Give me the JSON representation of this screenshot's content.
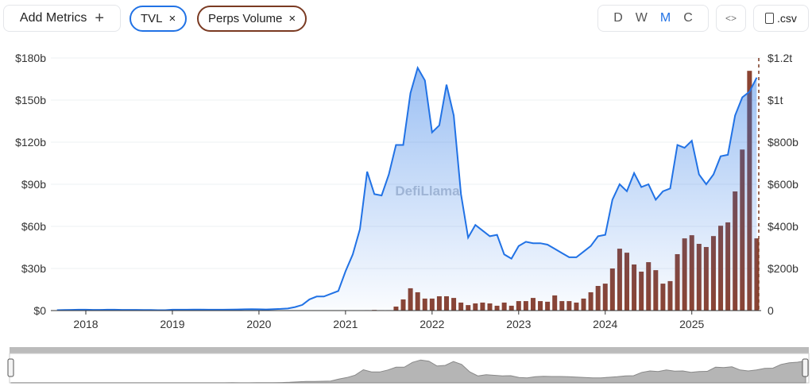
{
  "toolbar": {
    "add_metrics": "Add Metrics",
    "plus_icon": "+",
    "metrics": [
      {
        "label": "TVL",
        "color": "#2172e5"
      },
      {
        "label": "Perps Volume",
        "color": "#7a3a22"
      }
    ],
    "close_glyph": "×",
    "granularity": [
      "D",
      "W",
      "M",
      "C"
    ],
    "granularity_selected": "M",
    "embed_glyph": "<>",
    "csv_label": ".csv"
  },
  "watermark": "DefiLlama",
  "chart_data": {
    "type": "line+bar",
    "title": "",
    "xticks": [
      "2018",
      "2019",
      "2020",
      "2021",
      "2022",
      "2023",
      "2024",
      "2025"
    ],
    "yticks_left": [
      "$0",
      "$30b",
      "$60b",
      "$90b",
      "$120b",
      "$150b",
      "$180b"
    ],
    "yticks_right": [
      "0",
      "$200b",
      "$400b",
      "$600b",
      "$800b",
      "$1t",
      "$1.2t"
    ],
    "ylim_left": [
      0,
      180
    ],
    "ylim_right": [
      0,
      1200
    ],
    "unit": "billions USD",
    "grid": true,
    "series": [
      {
        "name": "TVL",
        "type": "area-line",
        "axis": "left",
        "color": "#2172e5",
        "months": [
          "2017-09",
          "2017-10",
          "2017-11",
          "2017-12",
          "2018-01",
          "2018-02",
          "2018-03",
          "2018-04",
          "2018-05",
          "2018-06",
          "2018-07",
          "2018-08",
          "2018-09",
          "2018-10",
          "2018-11",
          "2018-12",
          "2019-01",
          "2019-02",
          "2019-03",
          "2019-04",
          "2019-05",
          "2019-06",
          "2019-07",
          "2019-08",
          "2019-09",
          "2019-10",
          "2019-11",
          "2019-12",
          "2020-01",
          "2020-02",
          "2020-03",
          "2020-04",
          "2020-05",
          "2020-06",
          "2020-07",
          "2020-08",
          "2020-09",
          "2020-10",
          "2020-11",
          "2020-12",
          "2021-01",
          "2021-02",
          "2021-03",
          "2021-04",
          "2021-05",
          "2021-06",
          "2021-07",
          "2021-08",
          "2021-09",
          "2021-10",
          "2021-11",
          "2021-12",
          "2022-01",
          "2022-02",
          "2022-03",
          "2022-04",
          "2022-05",
          "2022-06",
          "2022-07",
          "2022-08",
          "2022-09",
          "2022-10",
          "2022-11",
          "2022-12",
          "2023-01",
          "2023-02",
          "2023-03",
          "2023-04",
          "2023-05",
          "2023-06",
          "2023-07",
          "2023-08",
          "2023-09",
          "2023-10",
          "2023-11",
          "2023-12",
          "2024-01",
          "2024-02",
          "2024-03",
          "2024-04",
          "2024-05",
          "2024-06",
          "2024-07",
          "2024-08",
          "2024-09",
          "2024-10",
          "2024-11",
          "2024-12",
          "2025-01",
          "2025-02",
          "2025-03",
          "2025-04",
          "2025-05",
          "2025-06",
          "2025-07",
          "2025-08",
          "2025-09",
          "2025-10"
        ],
        "values": [
          0.3,
          0.4,
          0.5,
          0.6,
          0.6,
          0.5,
          0.5,
          0.6,
          0.6,
          0.5,
          0.5,
          0.5,
          0.4,
          0.4,
          0.3,
          0.3,
          0.6,
          0.6,
          0.6,
          0.7,
          0.7,
          0.6,
          0.6,
          0.6,
          0.7,
          0.8,
          0.9,
          1.0,
          0.9,
          0.8,
          1.0,
          1.2,
          1.5,
          2.5,
          4,
          8,
          10,
          10,
          12,
          14,
          28,
          40,
          58,
          99,
          83,
          82,
          97,
          118,
          118,
          155,
          173,
          164,
          127,
          132,
          161,
          139,
          83,
          52,
          61,
          57,
          53,
          54,
          40,
          37,
          46,
          49,
          48,
          48,
          47,
          44,
          41,
          38,
          38,
          42,
          46,
          53,
          54,
          79,
          90,
          85,
          98,
          88,
          90,
          79,
          85,
          87,
          118,
          116,
          121,
          97,
          90,
          97,
          110,
          111,
          139,
          152,
          156,
          166
        ]
      },
      {
        "name": "Perps Volume",
        "type": "bar",
        "axis": "right",
        "color": "#8b4331",
        "months": [
          "2021-04",
          "2021-05",
          "2021-06",
          "2021-07",
          "2021-08",
          "2021-09",
          "2021-10",
          "2021-11",
          "2021-12",
          "2022-01",
          "2022-02",
          "2022-03",
          "2022-04",
          "2022-05",
          "2022-06",
          "2022-07",
          "2022-08",
          "2022-09",
          "2022-10",
          "2022-11",
          "2022-12",
          "2023-01",
          "2023-02",
          "2023-03",
          "2023-04",
          "2023-05",
          "2023-06",
          "2023-07",
          "2023-08",
          "2023-09",
          "2023-10",
          "2023-11",
          "2023-12",
          "2024-01",
          "2024-02",
          "2024-03",
          "2024-04",
          "2024-05",
          "2024-06",
          "2024-07",
          "2024-08",
          "2024-09",
          "2024-10",
          "2024-11",
          "2024-12",
          "2025-01",
          "2025-02",
          "2025-03",
          "2025-04",
          "2025-05",
          "2025-06",
          "2025-07",
          "2025-08",
          "2025-09",
          "2025-10"
        ],
        "values": [
          2,
          3,
          2,
          2,
          19,
          53,
          106,
          87,
          57,
          57,
          68,
          68,
          60,
          38,
          26,
          34,
          38,
          34,
          23,
          38,
          23,
          45,
          45,
          60,
          45,
          42,
          72,
          45,
          45,
          38,
          57,
          87,
          117,
          128,
          200,
          294,
          275,
          219,
          185,
          230,
          192,
          128,
          140,
          268,
          343,
          358,
          317,
          302,
          354,
          403,
          419,
          566,
          765,
          1139,
          343
        ]
      }
    ]
  }
}
